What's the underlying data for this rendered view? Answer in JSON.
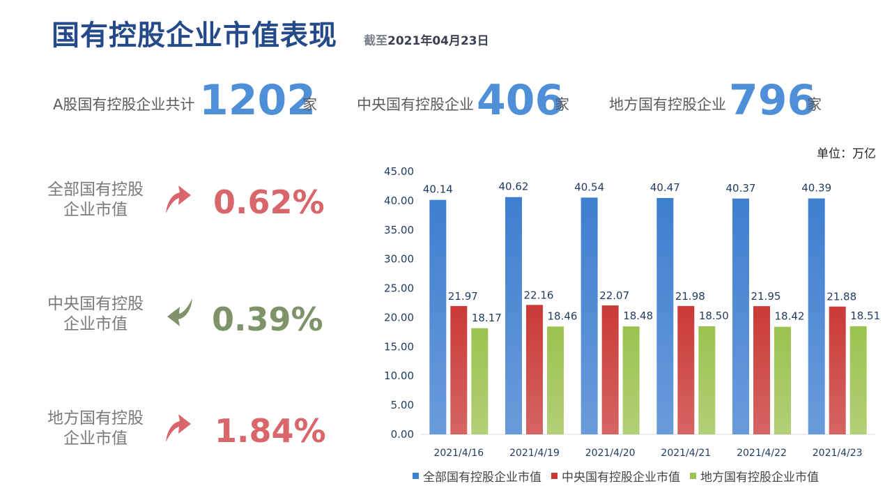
{
  "header": {
    "title": "国有控股企业市值表现",
    "asof_prefix": "截至",
    "asof_date": "2021年04月23日"
  },
  "stats": [
    {
      "label": "A股国有控股企业共计",
      "value": "1202",
      "unit": "家"
    },
    {
      "label": "中央国有控股企业",
      "value": "406",
      "unit": "家"
    },
    {
      "label": "地方国有控股企业",
      "value": "796",
      "unit": "家"
    }
  ],
  "indicators": [
    {
      "label_line1": "全部国有控股",
      "label_line2": "企业市值",
      "direction": "up",
      "change": "0.62%",
      "color": "#d9666b"
    },
    {
      "label_line1": "中央国有控股",
      "label_line2": "企业市值",
      "direction": "down",
      "change": "0.39%",
      "color": "#7f9269"
    },
    {
      "label_line1": "地方国有控股",
      "label_line2": "企业市值",
      "direction": "up",
      "change": "1.84%",
      "color": "#d9666b"
    }
  ],
  "unit_label": "单位：万亿",
  "chart_data": {
    "type": "bar",
    "categories": [
      "2021/4/16",
      "2021/4/19",
      "2021/4/20",
      "2021/4/21",
      "2021/4/22",
      "2021/4/23"
    ],
    "series": [
      {
        "name": "全部国有控股企业市值",
        "values": [
          40.14,
          40.62,
          40.54,
          40.47,
          40.37,
          40.39
        ],
        "color": "#3f7fd0"
      },
      {
        "name": "中央国有控股企业市值",
        "values": [
          21.97,
          22.16,
          22.07,
          21.98,
          21.95,
          21.88
        ],
        "color": "#c93a36"
      },
      {
        "name": "地方国有控股企业市值",
        "values": [
          18.17,
          18.46,
          18.48,
          18.5,
          18.42,
          18.51
        ],
        "color": "#9cc24f"
      }
    ],
    "ylim": [
      0,
      45
    ],
    "yticks": [
      "0.00",
      "5.00",
      "10.00",
      "15.00",
      "20.00",
      "25.00",
      "30.00",
      "35.00",
      "40.00",
      "45.00"
    ],
    "grid": false,
    "legend": "bottom"
  }
}
